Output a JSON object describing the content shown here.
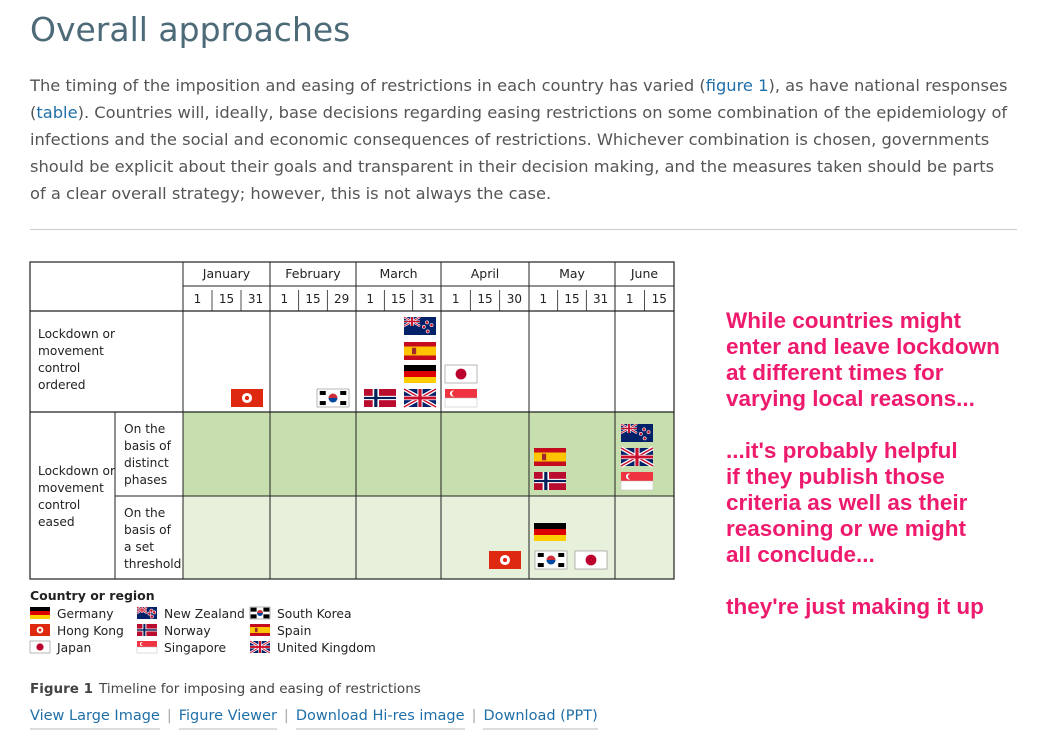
{
  "article": {
    "heading": "Overall approaches",
    "paragraph": {
      "part1": "The timing of the imposition and easing of restrictions in each country has varied (",
      "link1": "figure 1",
      "part2": "), as have national responses (",
      "link2": "table",
      "part3": "). Countries will, ideally, base decisions regarding easing restrictions on some combination of the epidemiology of infections and the social and economic consequences of restrictions. Whichever combination is chosen, governments should be explicit about their goals and transparent in their decision making, and the measures taken should be parts of a clear overall strategy; however, this is not always the case."
    }
  },
  "figure": {
    "months": [
      "January",
      "February",
      "March",
      "April",
      "May",
      "June"
    ],
    "day_ticks": [
      [
        "1",
        "15",
        "31"
      ],
      [
        "1",
        "15",
        "29"
      ],
      [
        "1",
        "15",
        "31"
      ],
      [
        "1",
        "15",
        "30"
      ],
      [
        "1",
        "15",
        "31"
      ],
      [
        "1",
        "15"
      ]
    ],
    "row_labels": {
      "lockdown_ordered": [
        "Lockdown or",
        "movement",
        "control",
        "ordered"
      ],
      "lockdown_eased": [
        "Lockdown or",
        "movement",
        "control",
        "eased"
      ],
      "distinct_phases": [
        "On the",
        "basis of",
        "distinct",
        "phases"
      ],
      "set_threshold": [
        "On the",
        "basis of",
        "a set",
        "threshold"
      ]
    },
    "colors": {
      "eased_phases_bg": "#c7dfae",
      "eased_threshold_bg": "#e6f0da",
      "grid": "#222222"
    },
    "events": {
      "ordered": [
        {
          "flag": "hong-kong",
          "month": "January"
        },
        {
          "flag": "south-korea",
          "month": "February"
        },
        {
          "flag": "norway",
          "month": "March"
        },
        {
          "flag": "united-kingdom",
          "month": "March"
        },
        {
          "flag": "germany",
          "month": "March"
        },
        {
          "flag": "spain",
          "month": "March"
        },
        {
          "flag": "new-zealand",
          "month": "March"
        },
        {
          "flag": "singapore",
          "month": "April"
        },
        {
          "flag": "japan",
          "month": "April"
        }
      ],
      "eased_phases": [
        {
          "flag": "norway",
          "month": "May"
        },
        {
          "flag": "spain",
          "month": "May"
        },
        {
          "flag": "singapore",
          "month": "June"
        },
        {
          "flag": "united-kingdom",
          "month": "June"
        },
        {
          "flag": "new-zealand",
          "month": "June"
        }
      ],
      "eased_threshold": [
        {
          "flag": "hong-kong",
          "month": "April"
        },
        {
          "flag": "south-korea",
          "month": "May"
        },
        {
          "flag": "japan",
          "month": "May"
        },
        {
          "flag": "germany",
          "month": "May"
        }
      ]
    },
    "legend_title": "Country or region",
    "legend": [
      {
        "flag": "germany",
        "label": "Germany"
      },
      {
        "flag": "hong-kong",
        "label": "Hong Kong"
      },
      {
        "flag": "japan",
        "label": "Japan"
      },
      {
        "flag": "new-zealand",
        "label": "New Zealand"
      },
      {
        "flag": "norway",
        "label": "Norway"
      },
      {
        "flag": "singapore",
        "label": "Singapore"
      },
      {
        "flag": "south-korea",
        "label": "South Korea"
      },
      {
        "flag": "spain",
        "label": "Spain"
      },
      {
        "flag": "united-kingdom",
        "label": "United Kingdom"
      }
    ],
    "caption_label": "Figure 1",
    "caption_text": "Timeline for imposing and easing of restrictions",
    "links": [
      "View Large Image",
      "Figure Viewer",
      "Download Hi-res image",
      "Download (PPT)"
    ]
  },
  "annotation": {
    "block1": [
      "While countries might",
      "enter and leave lockdown",
      "at different times for",
      "varying local reasons..."
    ],
    "block2": [
      "...it's probably helpful",
      "if they publish those",
      "criteria as well as their",
      "reasoning or we might",
      "all conclude..."
    ],
    "block3": [
      "they're just making it up"
    ]
  }
}
